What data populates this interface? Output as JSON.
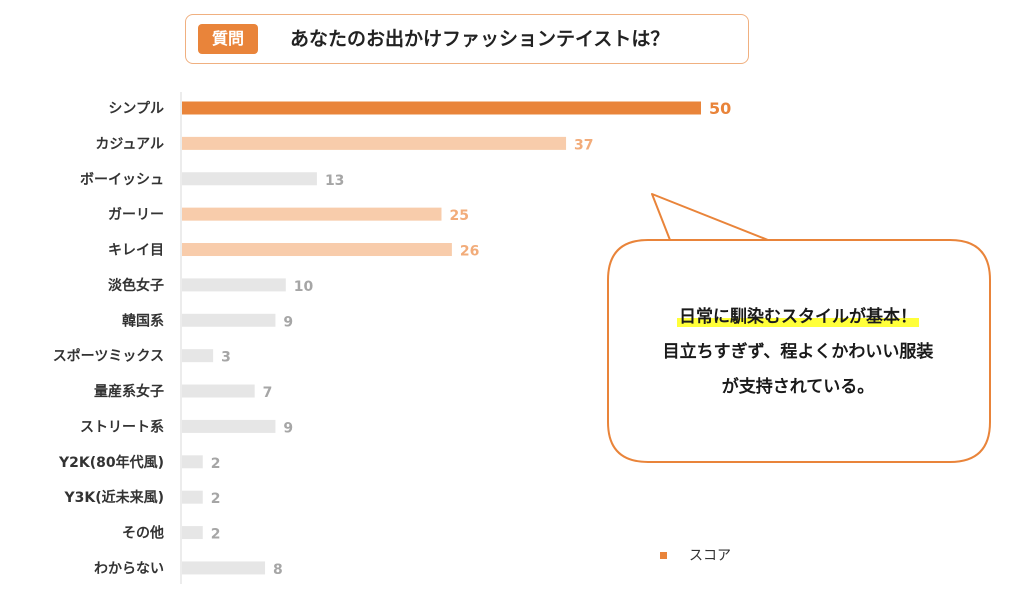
{
  "question": {
    "badge": "質問",
    "text": "あなたのお出かけファッションテイストは？"
  },
  "callout": {
    "line1": "日常に馴染むスタイルが基本！",
    "line2": "目立ちすぎず、程よくかわいい服装",
    "line3": "が支持されている。"
  },
  "colors": {
    "top": "#e9843a",
    "high": "#f8ccab",
    "low": "#e6e6e6",
    "label_top": "#e9843a",
    "label_high": "#f2ac7a",
    "label_low": "#a6a6a6"
  },
  "chart_data": {
    "type": "bar",
    "orientation": "horizontal",
    "categories": [
      "シンプル",
      "カジュアル",
      "ボーイッシュ",
      "ガーリー",
      "キレイ目",
      "淡色女子",
      "韓国系",
      "スポーツミックス",
      "量産系女子",
      "ストリート系",
      "Y2K(80年代風)",
      "Y3K(近未来風)",
      "その他",
      "わからない"
    ],
    "series": [
      {
        "name": "スコア",
        "values": [
          50,
          37,
          13,
          25,
          26,
          10,
          9,
          3,
          7,
          9,
          2,
          2,
          2,
          8
        ]
      }
    ],
    "legend": "bottom-right",
    "grid": false
  }
}
